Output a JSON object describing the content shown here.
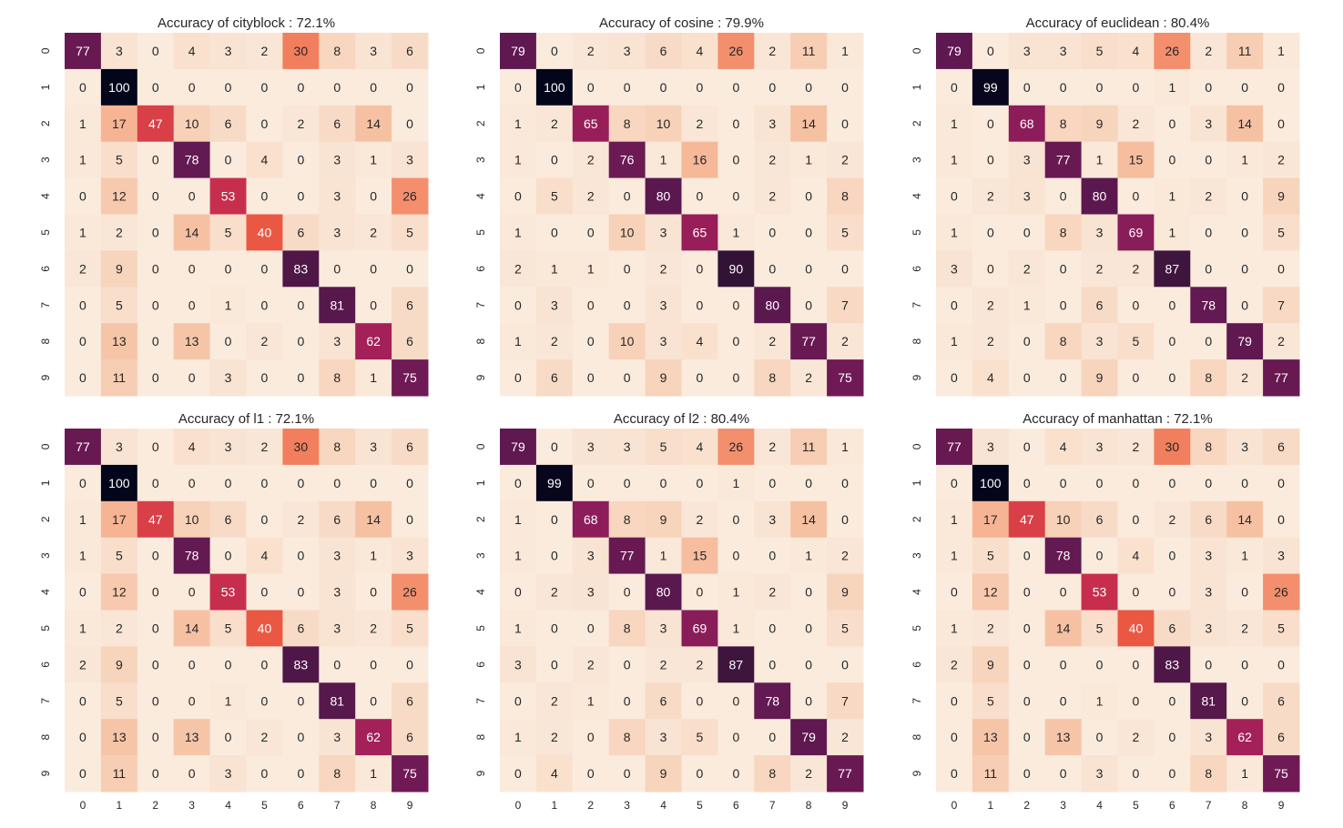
{
  "chart_data": [
    {
      "type": "heatmap",
      "title": "Accuracy of cityblock : 72.1%",
      "x_labels": [
        "0",
        "1",
        "2",
        "3",
        "4",
        "5",
        "6",
        "7",
        "8",
        "9"
      ],
      "y_labels": [
        "0",
        "1",
        "2",
        "3",
        "4",
        "5",
        "6",
        "7",
        "8",
        "9"
      ],
      "value_range": [
        0,
        100
      ],
      "colormap": "rocket_r",
      "values": [
        [
          77,
          3,
          0,
          4,
          3,
          2,
          30,
          8,
          3,
          6
        ],
        [
          0,
          100,
          0,
          0,
          0,
          0,
          0,
          0,
          0,
          0
        ],
        [
          1,
          17,
          47,
          10,
          6,
          0,
          2,
          6,
          14,
          0
        ],
        [
          1,
          5,
          0,
          78,
          0,
          4,
          0,
          3,
          1,
          3
        ],
        [
          0,
          12,
          0,
          0,
          53,
          0,
          0,
          3,
          0,
          26
        ],
        [
          1,
          2,
          0,
          14,
          5,
          40,
          6,
          3,
          2,
          5
        ],
        [
          2,
          9,
          0,
          0,
          0,
          0,
          83,
          0,
          0,
          0
        ],
        [
          0,
          5,
          0,
          0,
          1,
          0,
          0,
          81,
          0,
          6
        ],
        [
          0,
          13,
          0,
          13,
          0,
          2,
          0,
          3,
          62,
          6
        ],
        [
          0,
          11,
          0,
          0,
          3,
          0,
          0,
          8,
          1,
          75
        ]
      ]
    },
    {
      "type": "heatmap",
      "title": "Accuracy of cosine : 79.9%",
      "x_labels": [
        "0",
        "1",
        "2",
        "3",
        "4",
        "5",
        "6",
        "7",
        "8",
        "9"
      ],
      "y_labels": [
        "0",
        "1",
        "2",
        "3",
        "4",
        "5",
        "6",
        "7",
        "8",
        "9"
      ],
      "value_range": [
        0,
        100
      ],
      "colormap": "rocket_r",
      "values": [
        [
          79,
          0,
          2,
          3,
          6,
          4,
          26,
          2,
          11,
          1
        ],
        [
          0,
          100,
          0,
          0,
          0,
          0,
          0,
          0,
          0,
          0
        ],
        [
          1,
          2,
          65,
          8,
          10,
          2,
          0,
          3,
          14,
          0
        ],
        [
          1,
          0,
          2,
          76,
          1,
          16,
          0,
          2,
          1,
          2
        ],
        [
          0,
          5,
          2,
          0,
          80,
          0,
          0,
          2,
          0,
          8
        ],
        [
          1,
          0,
          0,
          10,
          3,
          65,
          1,
          0,
          0,
          5
        ],
        [
          2,
          1,
          1,
          0,
          2,
          0,
          90,
          0,
          0,
          0
        ],
        [
          0,
          3,
          0,
          0,
          3,
          0,
          0,
          80,
          0,
          7
        ],
        [
          1,
          2,
          0,
          10,
          3,
          4,
          0,
          2,
          77,
          2
        ],
        [
          0,
          6,
          0,
          0,
          9,
          0,
          0,
          8,
          2,
          75
        ]
      ]
    },
    {
      "type": "heatmap",
      "title": "Accuracy of euclidean : 80.4%",
      "x_labels": [
        "0",
        "1",
        "2",
        "3",
        "4",
        "5",
        "6",
        "7",
        "8",
        "9"
      ],
      "y_labels": [
        "0",
        "1",
        "2",
        "3",
        "4",
        "5",
        "6",
        "7",
        "8",
        "9"
      ],
      "value_range": [
        0,
        100
      ],
      "colormap": "rocket_r",
      "values": [
        [
          79,
          0,
          3,
          3,
          5,
          4,
          26,
          2,
          11,
          1
        ],
        [
          0,
          99,
          0,
          0,
          0,
          0,
          1,
          0,
          0,
          0
        ],
        [
          1,
          0,
          68,
          8,
          9,
          2,
          0,
          3,
          14,
          0
        ],
        [
          1,
          0,
          3,
          77,
          1,
          15,
          0,
          0,
          1,
          2
        ],
        [
          0,
          2,
          3,
          0,
          80,
          0,
          1,
          2,
          0,
          9
        ],
        [
          1,
          0,
          0,
          8,
          3,
          69,
          1,
          0,
          0,
          5
        ],
        [
          3,
          0,
          2,
          0,
          2,
          2,
          87,
          0,
          0,
          0
        ],
        [
          0,
          2,
          1,
          0,
          6,
          0,
          0,
          78,
          0,
          7
        ],
        [
          1,
          2,
          0,
          8,
          3,
          5,
          0,
          0,
          79,
          2
        ],
        [
          0,
          4,
          0,
          0,
          9,
          0,
          0,
          8,
          2,
          77
        ]
      ]
    },
    {
      "type": "heatmap",
      "title": "Accuracy of l1 : 72.1%",
      "x_labels": [
        "0",
        "1",
        "2",
        "3",
        "4",
        "5",
        "6",
        "7",
        "8",
        "9"
      ],
      "y_labels": [
        "0",
        "1",
        "2",
        "3",
        "4",
        "5",
        "6",
        "7",
        "8",
        "9"
      ],
      "value_range": [
        0,
        100
      ],
      "colormap": "rocket_r",
      "values": [
        [
          77,
          3,
          0,
          4,
          3,
          2,
          30,
          8,
          3,
          6
        ],
        [
          0,
          100,
          0,
          0,
          0,
          0,
          0,
          0,
          0,
          0
        ],
        [
          1,
          17,
          47,
          10,
          6,
          0,
          2,
          6,
          14,
          0
        ],
        [
          1,
          5,
          0,
          78,
          0,
          4,
          0,
          3,
          1,
          3
        ],
        [
          0,
          12,
          0,
          0,
          53,
          0,
          0,
          3,
          0,
          26
        ],
        [
          1,
          2,
          0,
          14,
          5,
          40,
          6,
          3,
          2,
          5
        ],
        [
          2,
          9,
          0,
          0,
          0,
          0,
          83,
          0,
          0,
          0
        ],
        [
          0,
          5,
          0,
          0,
          1,
          0,
          0,
          81,
          0,
          6
        ],
        [
          0,
          13,
          0,
          13,
          0,
          2,
          0,
          3,
          62,
          6
        ],
        [
          0,
          11,
          0,
          0,
          3,
          0,
          0,
          8,
          1,
          75
        ]
      ]
    },
    {
      "type": "heatmap",
      "title": "Accuracy of l2 : 80.4%",
      "x_labels": [
        "0",
        "1",
        "2",
        "3",
        "4",
        "5",
        "6",
        "7",
        "8",
        "9"
      ],
      "y_labels": [
        "0",
        "1",
        "2",
        "3",
        "4",
        "5",
        "6",
        "7",
        "8",
        "9"
      ],
      "value_range": [
        0,
        100
      ],
      "colormap": "rocket_r",
      "values": [
        [
          79,
          0,
          3,
          3,
          5,
          4,
          26,
          2,
          11,
          1
        ],
        [
          0,
          99,
          0,
          0,
          0,
          0,
          1,
          0,
          0,
          0
        ],
        [
          1,
          0,
          68,
          8,
          9,
          2,
          0,
          3,
          14,
          0
        ],
        [
          1,
          0,
          3,
          77,
          1,
          15,
          0,
          0,
          1,
          2
        ],
        [
          0,
          2,
          3,
          0,
          80,
          0,
          1,
          2,
          0,
          9
        ],
        [
          1,
          0,
          0,
          8,
          3,
          69,
          1,
          0,
          0,
          5
        ],
        [
          3,
          0,
          2,
          0,
          2,
          2,
          87,
          0,
          0,
          0
        ],
        [
          0,
          2,
          1,
          0,
          6,
          0,
          0,
          78,
          0,
          7
        ],
        [
          1,
          2,
          0,
          8,
          3,
          5,
          0,
          0,
          79,
          2
        ],
        [
          0,
          4,
          0,
          0,
          9,
          0,
          0,
          8,
          2,
          77
        ]
      ]
    },
    {
      "type": "heatmap",
      "title": "Accuracy of manhattan : 72.1%",
      "x_labels": [
        "0",
        "1",
        "2",
        "3",
        "4",
        "5",
        "6",
        "7",
        "8",
        "9"
      ],
      "y_labels": [
        "0",
        "1",
        "2",
        "3",
        "4",
        "5",
        "6",
        "7",
        "8",
        "9"
      ],
      "value_range": [
        0,
        100
      ],
      "colormap": "rocket_r",
      "values": [
        [
          77,
          3,
          0,
          4,
          3,
          2,
          30,
          8,
          3,
          6
        ],
        [
          0,
          100,
          0,
          0,
          0,
          0,
          0,
          0,
          0,
          0
        ],
        [
          1,
          17,
          47,
          10,
          6,
          0,
          2,
          6,
          14,
          0
        ],
        [
          1,
          5,
          0,
          78,
          0,
          4,
          0,
          3,
          1,
          3
        ],
        [
          0,
          12,
          0,
          0,
          53,
          0,
          0,
          3,
          0,
          26
        ],
        [
          1,
          2,
          0,
          14,
          5,
          40,
          6,
          3,
          2,
          5
        ],
        [
          2,
          9,
          0,
          0,
          0,
          0,
          83,
          0,
          0,
          0
        ],
        [
          0,
          5,
          0,
          0,
          1,
          0,
          0,
          81,
          0,
          6
        ],
        [
          0,
          13,
          0,
          13,
          0,
          2,
          0,
          3,
          62,
          6
        ],
        [
          0,
          11,
          0,
          0,
          3,
          0,
          0,
          8,
          1,
          75
        ]
      ]
    }
  ]
}
